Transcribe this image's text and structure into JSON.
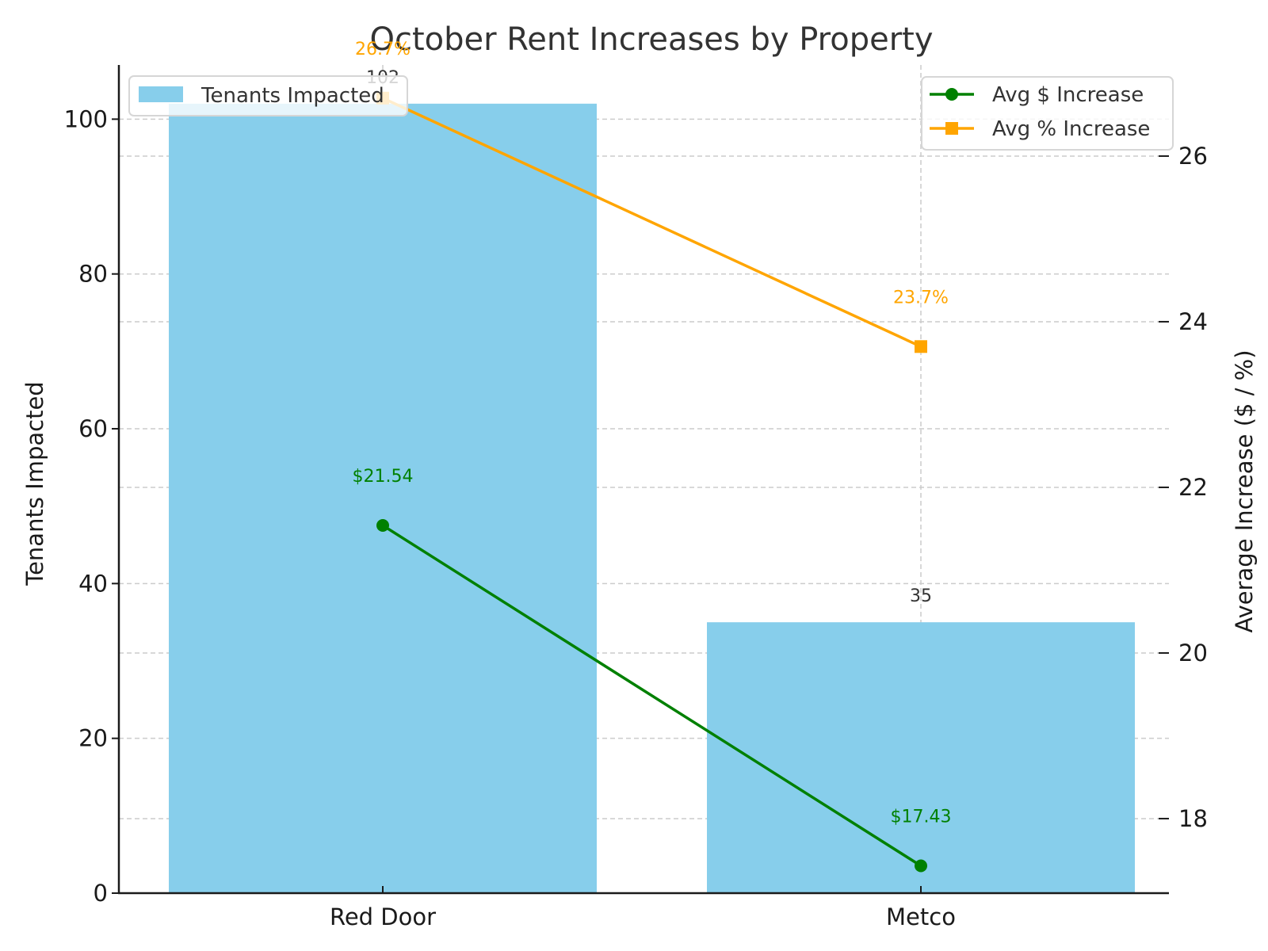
{
  "chart_data": {
    "type": "bar+line",
    "title": "October Rent Increases by Property",
    "categories": [
      "Red Door",
      "Metco"
    ],
    "xlabel": "",
    "ylabel_left": "Tenants Impacted",
    "ylabel_right": "Average Increase ($ / %)",
    "ylim_left": [
      0,
      107
    ],
    "ylim_right": [
      17.1,
      27.1
    ],
    "yticks_left": [
      0,
      20,
      40,
      60,
      80,
      100
    ],
    "yticks_right": [
      18,
      20,
      22,
      24,
      26
    ],
    "grid": true,
    "series": [
      {
        "name": "Tenants Impacted",
        "type": "bar",
        "axis": "left",
        "color": "#87CEEB",
        "values": [
          102,
          35
        ],
        "labels": [
          "102",
          "35"
        ]
      },
      {
        "name": "Avg $ Increase",
        "type": "line",
        "axis": "right",
        "marker": "circle",
        "color": "#008000",
        "values": [
          21.54,
          17.43
        ],
        "labels": [
          "$21.54",
          "$17.43"
        ]
      },
      {
        "name": "Avg % Increase",
        "type": "line",
        "axis": "right",
        "marker": "square",
        "color": "#FFA500",
        "values": [
          26.7,
          23.7
        ],
        "labels": [
          "26.7%",
          "23.7%"
        ]
      }
    ],
    "legends": [
      {
        "position": "upper left",
        "entries": [
          "Tenants Impacted"
        ]
      },
      {
        "position": "upper right",
        "entries": [
          "Avg $ Increase",
          "Avg % Increase"
        ]
      }
    ]
  }
}
